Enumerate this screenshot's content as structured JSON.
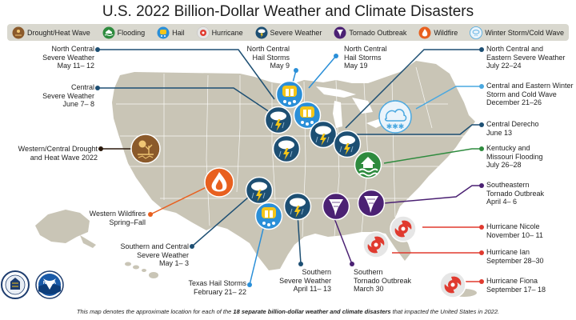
{
  "title": "U.S. 2022 Billion-Dollar Weather and Climate Disasters",
  "legend": [
    {
      "label": "Drought/Heat Wave",
      "icon": "drought-icon",
      "color": "#8b5a2b"
    },
    {
      "label": "Flooding",
      "icon": "flood-icon",
      "color": "#2e8b3e"
    },
    {
      "label": "Hail",
      "icon": "hail-icon",
      "color": "#2a8fd8"
    },
    {
      "label": "Hurricane",
      "icon": "hurricane-icon",
      "color": "#e03a2f"
    },
    {
      "label": "Severe Weather",
      "icon": "severe-weather-icon",
      "color": "#1d4f73"
    },
    {
      "label": "Tornado Outbreak",
      "icon": "tornado-icon",
      "color": "#4b2173"
    },
    {
      "label": "Wildfire",
      "icon": "wildfire-icon",
      "color": "#e8601f"
    },
    {
      "label": "Winter Storm/Cold Wave",
      "icon": "winter-storm-icon",
      "color": "#4aa8e0"
    }
  ],
  "events": [
    {
      "lines": [
        "North Central",
        "Severe Weather",
        "May 11– 12"
      ],
      "type": "severe-weather"
    },
    {
      "lines": [
        "Central",
        "Severe Weather",
        "June 7– 8"
      ],
      "type": "severe-weather"
    },
    {
      "lines": [
        "Western/Central Drought",
        "and Heat Wave 2022"
      ],
      "type": "drought"
    },
    {
      "lines": [
        "Western Wildfires",
        "Spring–Fall"
      ],
      "type": "wildfire"
    },
    {
      "lines": [
        "Southern and Central",
        "Severe Weather",
        "May 1– 3"
      ],
      "type": "severe-weather"
    },
    {
      "lines": [
        "Texas Hail Storms",
        "February 21– 22"
      ],
      "type": "hail"
    },
    {
      "lines": [
        "North Central",
        "Hail Storms",
        "May 9"
      ],
      "type": "hail"
    },
    {
      "lines": [
        "North Central",
        "Hail Storms",
        "May 19"
      ],
      "type": "hail"
    },
    {
      "lines": [
        "Southern",
        "Severe Weather",
        "April 11– 13"
      ],
      "type": "severe-weather"
    },
    {
      "lines": [
        "Southern",
        "Tornado Outbreak",
        "March 30"
      ],
      "type": "tornado"
    },
    {
      "lines": [
        "North Central and",
        "Eastern Severe Weather",
        "July 22–24"
      ],
      "type": "severe-weather"
    },
    {
      "lines": [
        "Central and Eastern Winter",
        "Storm and Cold Wave",
        "December 21–26"
      ],
      "type": "winter-storm"
    },
    {
      "lines": [
        "Central Derecho",
        "June 13"
      ],
      "type": "severe-weather"
    },
    {
      "lines": [
        "Kentucky and",
        "Missouri Flooding",
        "July 26–28"
      ],
      "type": "flooding"
    },
    {
      "lines": [
        "Southeastern",
        "Tornado Outbreak",
        "April 4– 6"
      ],
      "type": "tornado"
    },
    {
      "lines": [
        "Hurricane Nicole",
        "November 10– 11"
      ],
      "type": "hurricane"
    },
    {
      "lines": [
        "Hurricane Ian",
        "September 28–30"
      ],
      "type": "hurricane"
    },
    {
      "lines": [
        "Hurricane Fiona",
        "September 17– 18"
      ],
      "type": "hurricane"
    }
  ],
  "footnote": {
    "prefix": "This map denotes the approximate location for each of the ",
    "bold": "18 separate billion-dollar weather and climate disasters",
    "suffix": " that impacted the United States in 2022."
  },
  "logos": [
    {
      "icon": "doc-seal-icon",
      "name": "U.S. Department of Commerce seal"
    },
    {
      "icon": "noaa-logo-icon",
      "lettering": "NOAA"
    }
  ],
  "colors": {
    "land": "#c9c5b6",
    "state_lines": "#ffffff",
    "legend_bg": "#d9d8cf",
    "severe": "#1d4f73",
    "hail": "#2a8fd8",
    "tornado": "#4b2173",
    "hurricane": "#e03a2f",
    "flooding": "#2e8b3e",
    "drought": "#8b5a2b",
    "wildfire": "#e8601f",
    "winter": "#4aa8e0"
  }
}
